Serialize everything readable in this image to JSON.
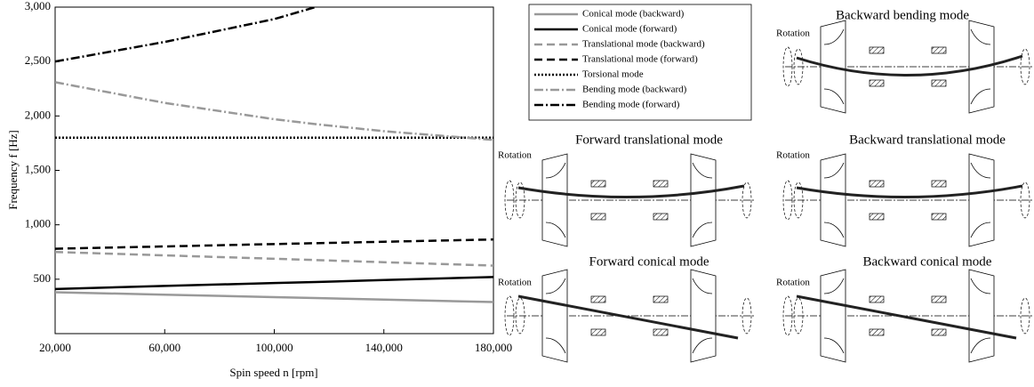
{
  "chart_data": {
    "type": "line",
    "xlabel": "Spin speed n [rpm]",
    "ylabel": "Frequency f [Hz]",
    "x": [
      20000,
      60000,
      100000,
      115000,
      140000,
      180000
    ],
    "xlim": [
      20000,
      180000
    ],
    "xticks": [
      {
        "value": 20000,
        "label": "20,000"
      },
      {
        "value": 60000,
        "label": "60,000"
      },
      {
        "value": 100000,
        "label": "100,000"
      },
      {
        "value": 140000,
        "label": "140,000"
      },
      {
        "value": 180000,
        "label": "180,000"
      }
    ],
    "ylim": [
      0,
      3000
    ],
    "yticks": [
      500,
      {
        "value": 1000,
        "label": "1,000"
      },
      {
        "value": 1500,
        "label": "1,500"
      },
      {
        "value": 2000,
        "label": "2,000"
      },
      {
        "value": 2500,
        "label": "2,500"
      },
      {
        "value": 3000,
        "label": "3,000"
      }
    ],
    "legend": "top-right",
    "series": [
      {
        "name": "Conical mode (backward)",
        "color": "#999999",
        "dash": "solid",
        "values": [
          380,
          358,
          335,
          327,
          313,
          290
        ]
      },
      {
        "name": "Conical mode (forward)",
        "color": "#000000",
        "dash": "solid",
        "values": [
          410,
          438,
          465,
          474,
          493,
          520
        ]
      },
      {
        "name": "Translational mode (backward)",
        "color": "#999999",
        "dash": "dashed",
        "values": [
          750,
          719,
          688,
          676,
          656,
          625
        ]
      },
      {
        "name": "Translational mode (forward)",
        "color": "#000000",
        "dash": "dashed",
        "values": [
          780,
          801,
          823,
          831,
          844,
          865
        ]
      },
      {
        "name": "Torsional mode",
        "color": "#000000",
        "dash": "dotted",
        "values": [
          1800,
          1800,
          1800,
          1800,
          1800,
          1800
        ]
      },
      {
        "name": "Bending mode (backward)",
        "color": "#999999",
        "dash": "dashdot",
        "values": [
          2310,
          2120,
          1970,
          1925,
          1860,
          1780
        ]
      },
      {
        "name": "Bending mode (forward)",
        "color": "#000000",
        "dash": "dashdot",
        "values": [
          2500,
          2680,
          2890,
          3000,
          null,
          null
        ]
      }
    ]
  },
  "diagrams": [
    {
      "title": "Backward bending mode",
      "label": "Rotation"
    },
    {
      "title": "Forward translational mode",
      "label": "Rotation"
    },
    {
      "title": "Backward translational mode",
      "label": "Rotation"
    },
    {
      "title": "Forward conical mode",
      "label": "Rotation"
    },
    {
      "title": "Backward conical mode",
      "label": "Rotation"
    }
  ]
}
